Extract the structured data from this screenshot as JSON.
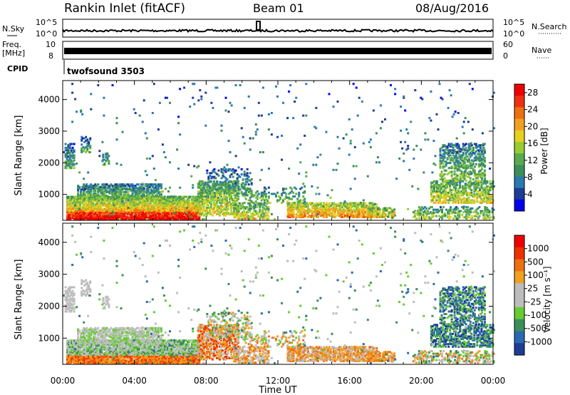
{
  "header": {
    "station": "Rankin Inlet (fitACF)",
    "beam": "Beam 01",
    "date": "08/Aug/2016"
  },
  "aux_panels": {
    "nsky_label": "N.Sky",
    "nsky_ticks": [
      "10^5",
      "10^0"
    ],
    "nsearch_label": "N.Search",
    "nsearch_ticks": [
      "10^5",
      "10^0"
    ],
    "freq_label_1": "Freq.",
    "freq_label_2": "[MHz]",
    "freq_ticks": [
      "10",
      "8"
    ],
    "nave_label": "Nave",
    "nave_ticks": [
      "60",
      "0"
    ],
    "cpid_label": "CPID",
    "cpid_value": "twofsound 3503"
  },
  "colors": {
    "power": [
      "#0000ee",
      "#1e3c96",
      "#2a7ab0",
      "#3c8f5a",
      "#5aaa50",
      "#99cc33",
      "#e8d020",
      "#f0a020",
      "#ee7010",
      "#ee3010",
      "#ee0000"
    ],
    "velocity": [
      "#ee0000",
      "#ee3000",
      "#ee7010",
      "#f0a020",
      "#bdbdbd",
      "#bdbdbd",
      "#66cc33",
      "#3c8f5a",
      "#2a6ab0",
      "#1e3c96"
    ]
  },
  "chart_data": [
    {
      "type": "heatmap",
      "name": "power-panel",
      "ylabel": "Slant Range [km]",
      "yticks": [
        "1000",
        "2000",
        "3000",
        "4000"
      ],
      "ylim": [
        180,
        4600
      ],
      "xlim": [
        0,
        24
      ],
      "xticks": [
        "00:00",
        "04:00",
        "08:00",
        "12:00",
        "16:00",
        "20:00",
        "00:00"
      ],
      "colorbar_label": "Power [dB]",
      "colorbar_ticks": [
        "4",
        "8",
        "12",
        "16",
        "20",
        "24",
        "28"
      ],
      "colorbar_range": [
        0,
        30
      ]
    },
    {
      "type": "heatmap",
      "name": "velocity-panel",
      "ylabel": "Slant Range [km]",
      "yticks": [
        "1000",
        "2000",
        "3000",
        "4000"
      ],
      "ylim": [
        180,
        4600
      ],
      "xlim": [
        0,
        24
      ],
      "xticks": [
        "00:00",
        "04:00",
        "08:00",
        "12:00",
        "16:00",
        "20:00",
        "00:00"
      ],
      "xlabel": "Time UT",
      "colorbar_label": "Velocity [m s⁻¹]",
      "colorbar_ticks": [
        "1000",
        "500",
        "100",
        "25",
        "-25",
        "-100",
        "-500",
        "-1000"
      ]
    }
  ]
}
